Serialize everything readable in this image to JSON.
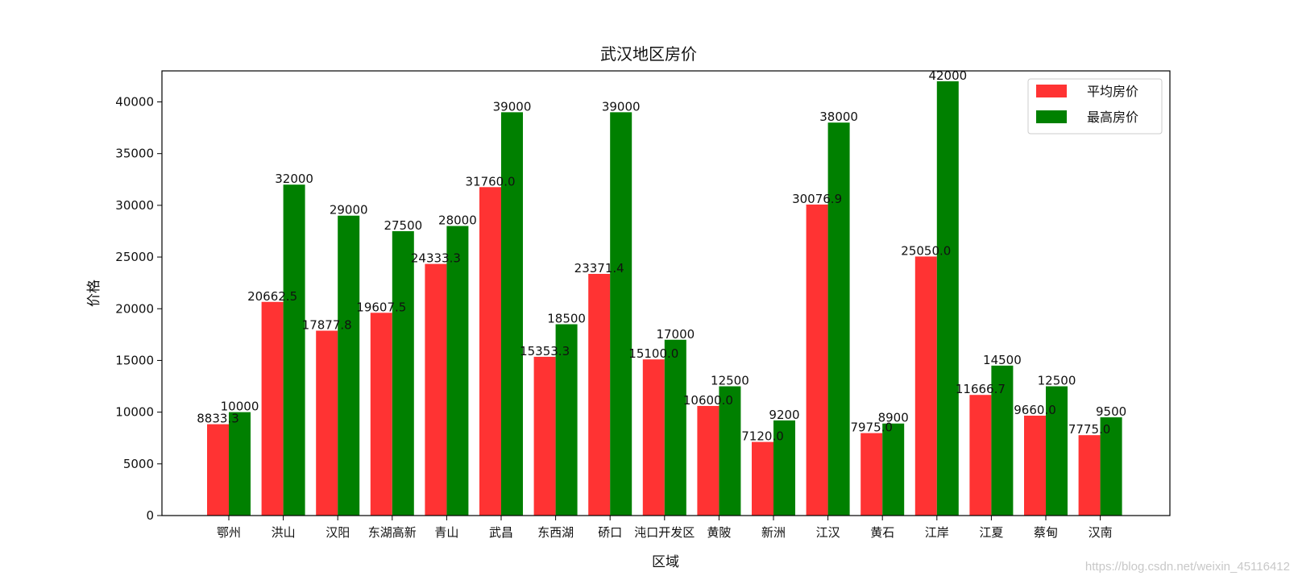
{
  "chart_data": {
    "type": "bar",
    "title": "武汉地区房价",
    "xlabel": "区域",
    "ylabel": "价格",
    "ylim": [
      0,
      43000
    ],
    "yticks": [
      0,
      5000,
      10000,
      15000,
      20000,
      25000,
      30000,
      35000,
      40000
    ],
    "grid": false,
    "legend_position": "top-right",
    "categories": [
      "鄂州",
      "洪山",
      "汉阳",
      "东湖高新",
      "青山",
      "武昌",
      "东西湖",
      "硚口",
      "沌口开发区",
      "黄陂",
      "新洲",
      "江汉",
      "黄石",
      "江岸",
      "江夏",
      "蔡甸",
      "汉南"
    ],
    "series": [
      {
        "name": "平均房价",
        "color": "#ff3333",
        "values": [
          8833.3,
          20662.5,
          17877.8,
          19607.5,
          24333.3,
          31760.0,
          15353.3,
          23371.4,
          15100.0,
          10600.0,
          7120.0,
          30076.9,
          7975.0,
          25050.0,
          11666.7,
          9660.0,
          7775.0
        ],
        "labels": [
          "8833.3",
          "20662.5",
          "17877.8",
          "19607.5",
          "24333.3",
          "31760.0",
          "15353.3",
          "23371.4",
          "15100.0",
          "10600.0",
          "7120.0",
          "30076.9",
          "7975.0",
          "25050.0",
          "11666.7",
          "9660.0",
          "7775.0"
        ]
      },
      {
        "name": "最高房价",
        "color": "#008000",
        "values": [
          10000,
          32000,
          29000,
          27500,
          28000,
          39000,
          18500,
          39000,
          17000,
          12500,
          9200,
          38000,
          8900,
          42000,
          14500,
          12500,
          9500
        ],
        "labels": [
          "10000",
          "32000",
          "29000",
          "27500",
          "28000",
          "39000",
          "18500",
          "39000",
          "17000",
          "12500",
          "9200",
          "38000",
          "8900",
          "42000",
          "14500",
          "12500",
          "9500"
        ]
      }
    ]
  },
  "watermark": "https://blog.csdn.net/weixin_45116412"
}
